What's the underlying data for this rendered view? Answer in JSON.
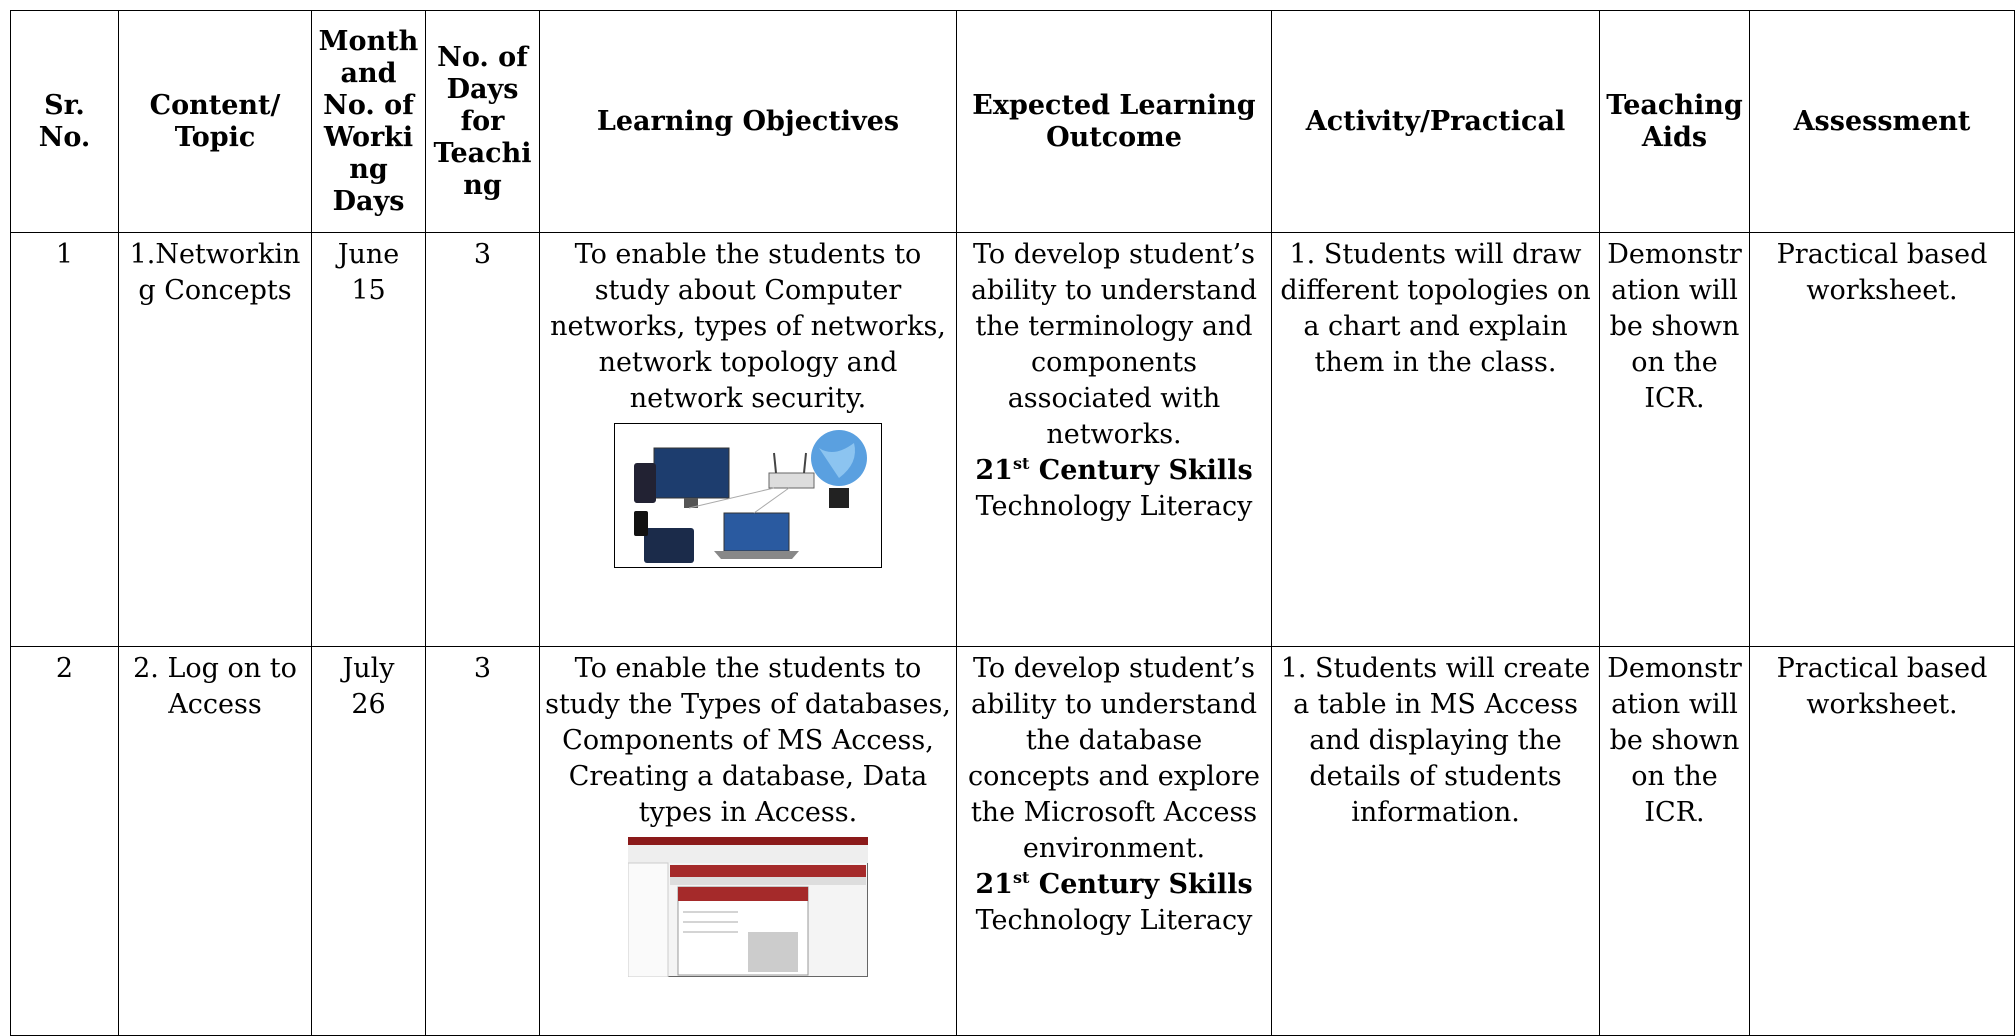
{
  "table": {
    "headers": [
      "Sr. No.",
      "Content/ Topic",
      "Month and No. of Working Days",
      "No. of Days for Teaching",
      "Learning Objectives",
      "Expected Learning Outcome",
      "Activity/Practical",
      "Teaching Aids",
      "Assessment"
    ],
    "rows": [
      {
        "sr": "1",
        "topic": "1.Networking Concepts",
        "month": "June",
        "working_days": "15",
        "teaching_days": "3",
        "objective": "To enable the students to study about Computer networks, types of networks, network topology and network security.",
        "outcome": "To develop student’s ability to understand the terminology and components associated with networks.",
        "skills": {
          "num": "21",
          "sup": "st",
          "rest": "Century Skills"
        },
        "skill_name": "Technology Literacy",
        "activity": "1. Students will draw different topologies on a chart and explain them in the class.",
        "aids": "Demonstration will be shown on the ICR.",
        "assessment": "Practical based worksheet."
      },
      {
        "sr": "2",
        "topic": "2. Log on to Access",
        "month": "July",
        "working_days": "26",
        "teaching_days": "3",
        "objective": "To enable the students to study the Types of databases, Components of MS Access, Creating a database, Data types in Access.",
        "outcome": "To develop student’s ability to understand the database concepts and explore the Microsoft Access environment.",
        "skills": {
          "num": "21",
          "sup": "st",
          "rest": "Century Skills"
        },
        "skill_name": "Technology Literacy",
        "activity": "1. Students will create a table in MS Access and displaying the details of students information.",
        "aids": "Demonstration will be shown on the ICR.",
        "assessment": "Practical based worksheet."
      }
    ]
  }
}
